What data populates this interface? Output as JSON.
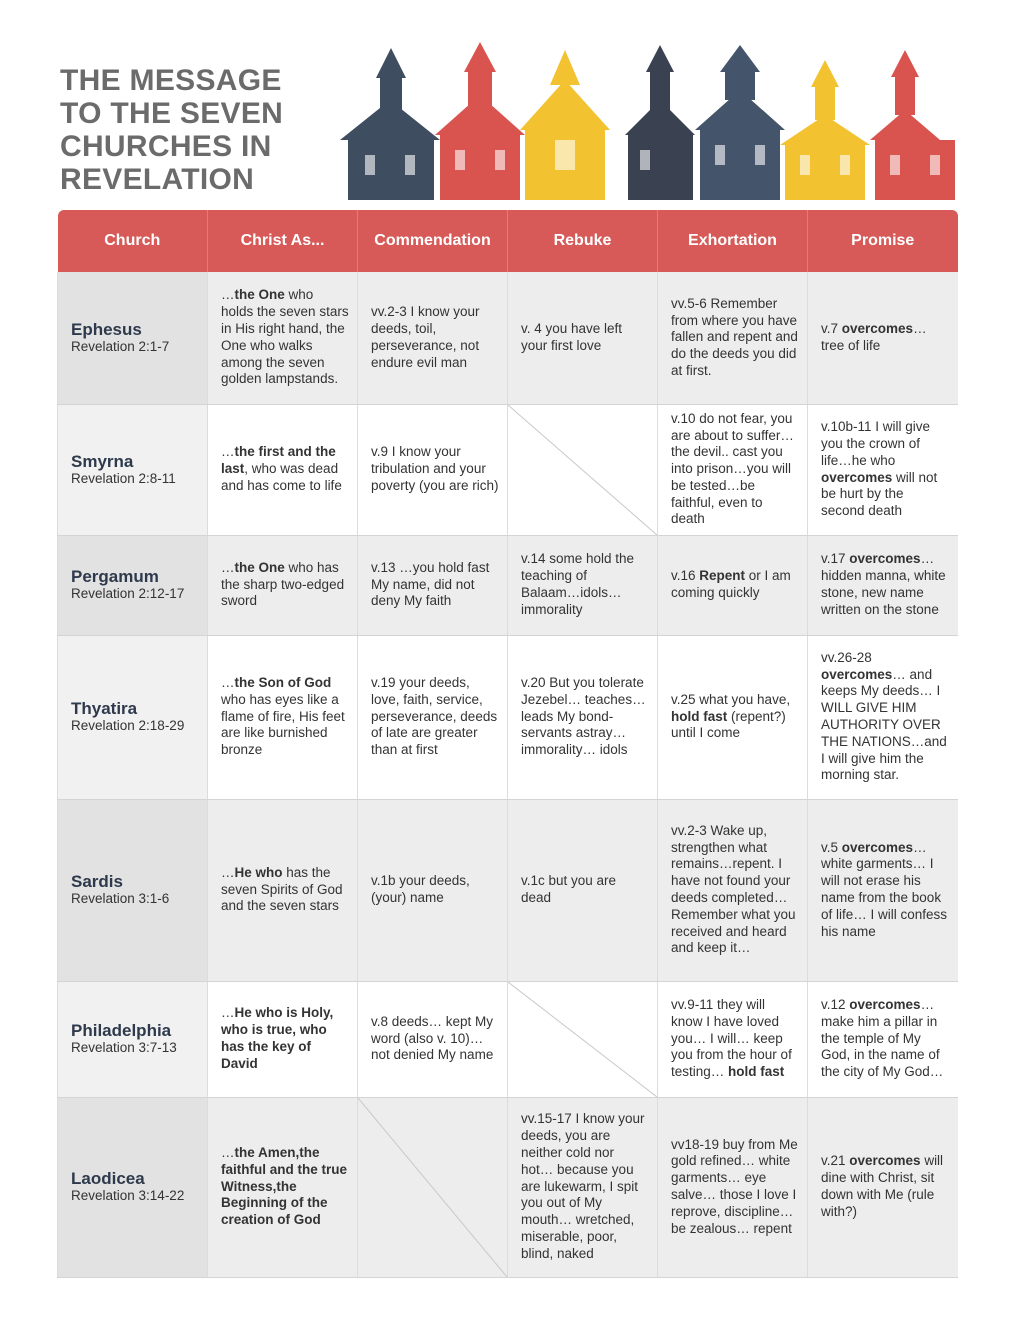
{
  "header": {
    "title_lines": [
      "THE MESSAGE",
      "TO THE SEVEN",
      "CHURCHES IN",
      "REVELATION"
    ]
  },
  "table": {
    "columns": [
      "Church",
      "Christ As...",
      "Commendation",
      "Rebuke",
      "Exhortation",
      "Promise"
    ],
    "rows": [
      {
        "church": "Ephesus",
        "reference": "Revelation 2:1-7",
        "cells": [
          [
            "…",
            {
              "text": "the One",
              "bold": true
            },
            " who holds the seven stars in His right hand, the One who walks among the seven golden lampstands."
          ],
          [
            "vv.2-3 I know your deeds, toil, perseverance, not endure evil man"
          ],
          [
            "v. 4 you have left your first love"
          ],
          [
            "vv.5-6 Remember from where you have fallen and repent and do the deeds you did at first."
          ],
          [
            "v.7 ",
            {
              "text": "overcomes",
              "bold": true
            },
            "… tree of life"
          ]
        ]
      },
      {
        "church": "Smyrna",
        "reference": "Revelation 2:8-11",
        "cells": [
          [
            "…",
            {
              "text": "the first and the last",
              "bold": true
            },
            ", who was dead and has come to life"
          ],
          [
            "v.9 I know your tribulation and your poverty (you are rich)"
          ],
          null,
          [
            "v.10 do not fear, you are about to suffer…the devil.. cast you into prison…you will be tested…be faithful, even to death"
          ],
          [
            "v.10b-11 I will give you the crown of life…he who ",
            {
              "text": "overcomes",
              "bold": true
            },
            " will not be hurt by the second death"
          ]
        ]
      },
      {
        "church": "Pergamum",
        "reference": "Revelation 2:12-17",
        "cells": [
          [
            "…",
            {
              "text": "the One",
              "bold": true
            },
            " who has the sharp two-edged sword"
          ],
          [
            "v.13 …you hold fast My name, did not deny My faith"
          ],
          [
            "v.14 some hold the teaching of Balaam…idols… immorality"
          ],
          [
            "v.16 ",
            {
              "text": "Repent",
              "bold": true
            },
            " or I am coming quickly"
          ],
          [
            "v.17 ",
            {
              "text": "overcomes",
              "bold": true
            },
            "… hidden manna, white stone, new name written on the stone"
          ]
        ]
      },
      {
        "church": "Thyatira",
        "reference": "Revelation 2:18-29",
        "cells": [
          [
            "…",
            {
              "text": "the Son of God",
              "bold": true
            },
            " who has eyes like a flame of fire, His feet are like burnished bronze"
          ],
          [
            "v.19 your deeds, love, faith, service, perseverance, deeds of late are greater than at first"
          ],
          [
            "v.20 But you tolerate Jezebel… teaches… leads My bond-servants astray… immorality… idols"
          ],
          [
            "v.25 what you have, ",
            {
              "text": "hold fast",
              "bold": true
            },
            " (repent?) until I come"
          ],
          [
            "vv.26-28 ",
            {
              "text": "overcomes",
              "bold": true
            },
            "… and keeps My deeds… I WILL GIVE HIM AUTHORITY OVER THE NATIONS…and I will give him the morning star."
          ]
        ]
      },
      {
        "church": "Sardis",
        "reference": "Revelation 3:1-6",
        "cells": [
          [
            "…",
            {
              "text": "He who",
              "bold": true
            },
            " has the seven Spirits of God and the seven stars"
          ],
          [
            "v.1b your deeds, (your) name"
          ],
          [
            "v.1c but you are dead"
          ],
          [
            "vv.2-3 Wake up, strengthen what remains…repent. I have not found your deeds completed… Remember what you received and heard and keep it…"
          ],
          [
            "v.5 ",
            {
              "text": "overcomes",
              "bold": true
            },
            "… white garments… I will not erase his name from the book of life… I will confess his name"
          ]
        ]
      },
      {
        "church": "Philadelphia",
        "reference": "Revelation 3:7-13",
        "cells": [
          [
            "…",
            {
              "text": "He who is Holy, who is true, who has the key of David",
              "bold": true
            }
          ],
          [
            "v.8 deeds… kept My word (also v. 10)… not denied My name"
          ],
          null,
          [
            "vv.9-11 they will know I have loved you… I will… keep you from the hour of testing… ",
            {
              "text": "hold fast",
              "bold": true
            }
          ],
          [
            "v.12 ",
            {
              "text": "overcomes",
              "bold": true
            },
            "… make him a pillar in the temple of My God, in the name of the city of My God…"
          ]
        ]
      },
      {
        "church": "Laodicea",
        "reference": "Revelation 3:14-22",
        "cells": [
          [
            "…",
            {
              "text": "the Amen,the faithful and the true Witness,the Beginning of the creation of God",
              "bold": true
            }
          ],
          null,
          [
            "vv.15-17 I know your deeds, you are neither cold nor hot… because you are lukewarm, I spit you out of My mouth… wretched, miserable, poor, blind, naked"
          ],
          [
            "vv18-19 buy from Me gold refined… white garments… eye salve… those I love I reprove, discipline… be zealous… repent"
          ],
          [
            "v.21 ",
            {
              "text": "overcomes",
              "bold": true
            },
            " will dine with Christ, sit down with Me (rule with?)"
          ]
        ]
      }
    ]
  }
}
